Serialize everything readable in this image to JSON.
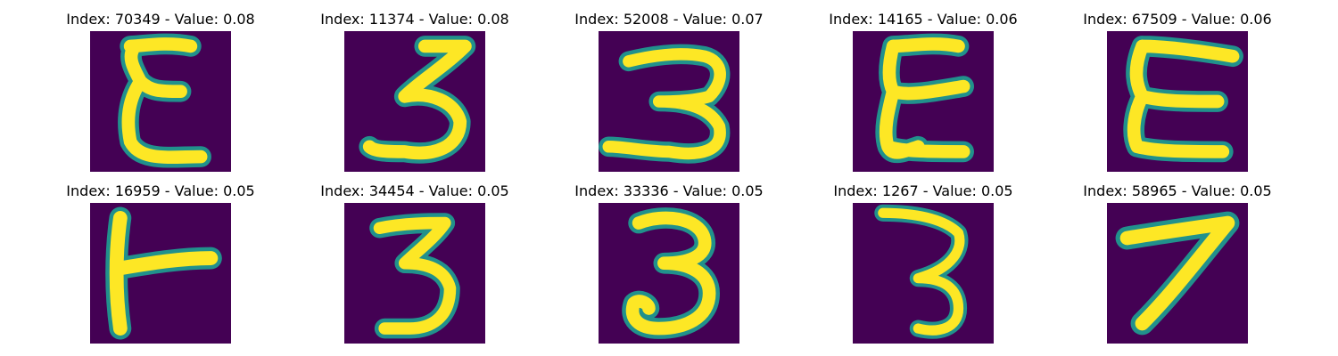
{
  "panels": [
    {
      "title": "Index: 70349 - Value: 0.08",
      "glyph": "E-narrow-icon"
    },
    {
      "title": "Index: 11374 - Value: 0.08",
      "glyph": "three-icon"
    },
    {
      "title": "Index: 52008 - Value: 0.07",
      "glyph": "three-wide-icon"
    },
    {
      "title": "Index: 14165 - Value: 0.06",
      "glyph": "E-narrow-icon"
    },
    {
      "title": "Index: 67509 - Value: 0.06",
      "glyph": "E-wide-icon"
    },
    {
      "title": "Index: 16959 - Value: 0.05",
      "glyph": "T-sideways-icon"
    },
    {
      "title": "Index: 34454 - Value: 0.05",
      "glyph": "three-icon"
    },
    {
      "title": "Index: 33336 - Value: 0.05",
      "glyph": "three-round-icon"
    },
    {
      "title": "Index: 1267 - Value: 0.05",
      "glyph": "three-thin-icon"
    },
    {
      "title": "Index: 58965 - Value: 0.05",
      "glyph": "seven-icon"
    }
  ],
  "colors": {
    "background": "#440154",
    "stroke_outer": "#21918c",
    "stroke_inner": "#fde725"
  }
}
